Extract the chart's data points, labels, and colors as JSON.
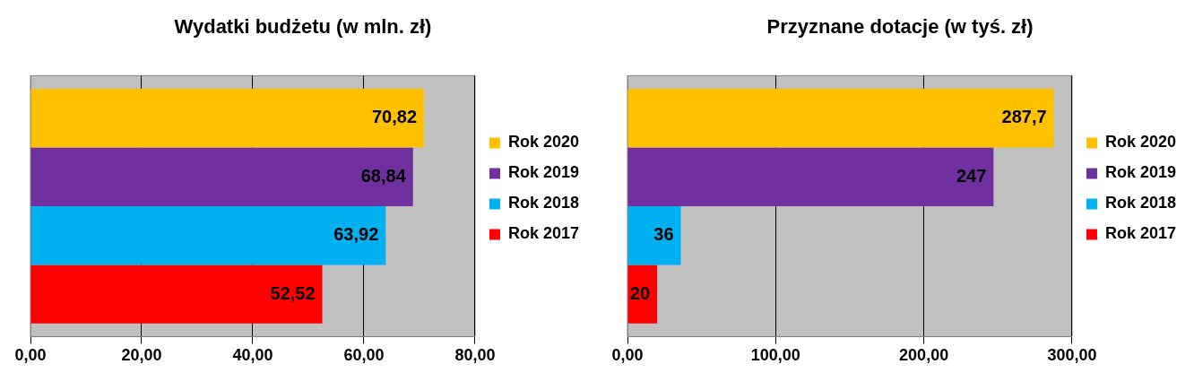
{
  "chart_data": [
    {
      "type": "bar",
      "orientation": "horizontal",
      "title": "Wydatki budżetu (w mln. zł)",
      "categories": [
        null
      ],
      "xlim": [
        0,
        80
      ],
      "xticks": [
        {
          "value": 0,
          "label": "0,00"
        },
        {
          "value": 20,
          "label": "20,00"
        },
        {
          "value": 40,
          "label": "40,00"
        },
        {
          "value": 60,
          "label": "60,00"
        },
        {
          "value": 80,
          "label": "80,00"
        }
      ],
      "grid": "x",
      "legend": "right",
      "series": [
        {
          "name": "Rok 2020",
          "color": "#ffc000",
          "values": [
            70.82
          ],
          "value_labels": [
            "70,82"
          ]
        },
        {
          "name": "Rok 2019",
          "color": "#7030a0",
          "values": [
            68.84
          ],
          "value_labels": [
            "68,84"
          ]
        },
        {
          "name": "Rok 2018",
          "color": "#00b0f0",
          "values": [
            63.92
          ],
          "value_labels": [
            "63,92"
          ]
        },
        {
          "name": "Rok 2017",
          "color": "#ff0000",
          "values": [
            52.52
          ],
          "value_labels": [
            "52,52"
          ]
        }
      ]
    },
    {
      "type": "bar",
      "orientation": "horizontal",
      "title": "Przyznane dotacje (w tyś. zł)",
      "categories": [
        null
      ],
      "xlim": [
        0,
        300
      ],
      "xticks": [
        {
          "value": 0,
          "label": "0,00"
        },
        {
          "value": 100,
          "label": "100,00"
        },
        {
          "value": 200,
          "label": "200,00"
        },
        {
          "value": 300,
          "label": "300,00"
        }
      ],
      "grid": "x",
      "legend": "right",
      "series": [
        {
          "name": "Rok 2020",
          "color": "#ffc000",
          "values": [
            287.7
          ],
          "value_labels": [
            "287,7"
          ]
        },
        {
          "name": "Rok 2019",
          "color": "#7030a0",
          "values": [
            247
          ],
          "value_labels": [
            "247"
          ]
        },
        {
          "name": "Rok 2018",
          "color": "#00b0f0",
          "values": [
            36
          ],
          "value_labels": [
            "36"
          ]
        },
        {
          "name": "Rok 2017",
          "color": "#ff0000",
          "values": [
            20
          ],
          "value_labels": [
            "20"
          ]
        }
      ]
    }
  ]
}
